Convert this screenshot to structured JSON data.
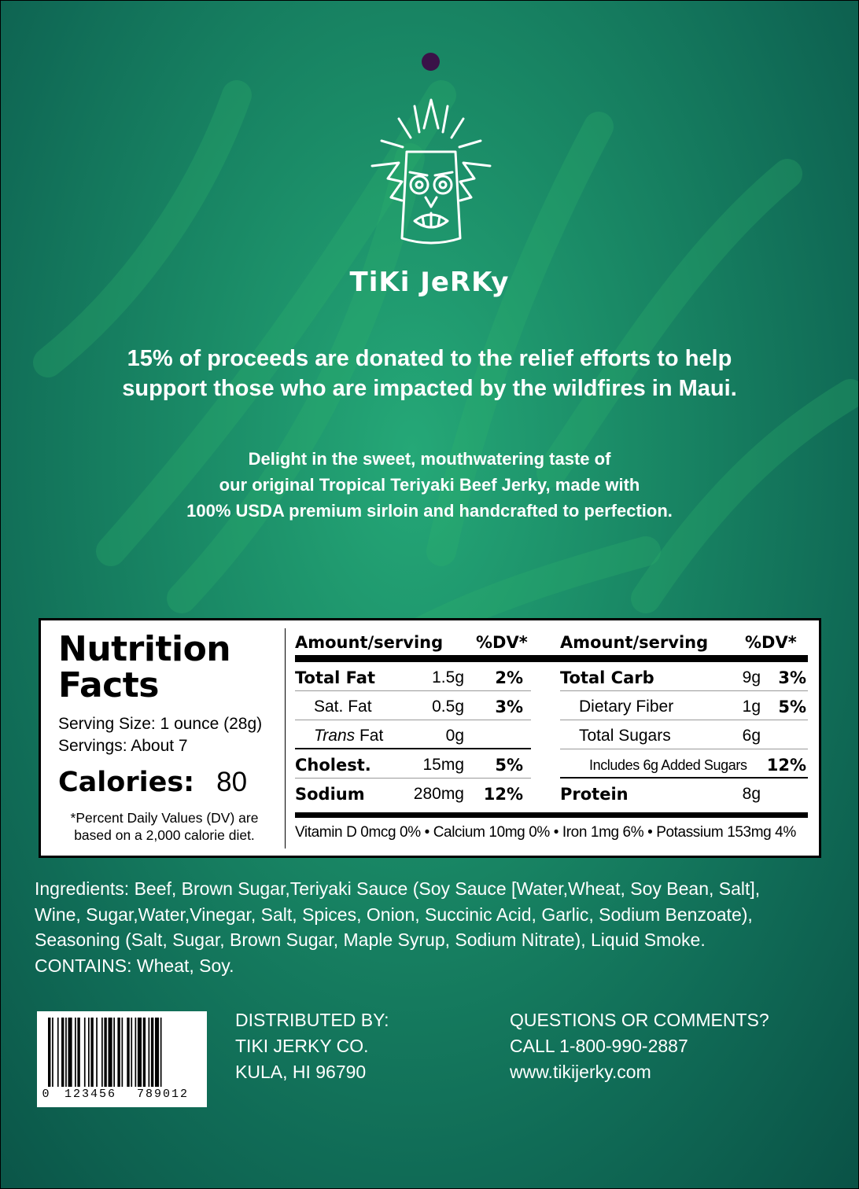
{
  "brand": {
    "name": "TiKi JeRKy"
  },
  "donation": {
    "line1": "15% of proceeds are donated to the relief efforts to help",
    "line2": "support those who are impacted by the wildfires in Maui."
  },
  "tagline": {
    "line1": "Delight in the sweet, mouthwatering taste of",
    "line2": "our original Tropical Teriyaki Beef Jerky, made with",
    "line3": "100% USDA premium sirloin and handcrafted to perfection."
  },
  "nutrition": {
    "title1": "Nutrition",
    "title2": "Facts",
    "serving_size": "Serving Size: 1 ounce (28g)",
    "servings": "Servings: About 7",
    "calories_label": "Calories:",
    "calories_value": "80",
    "footnote": "*Percent Daily Values (DV) are based on a 2,000 calorie diet.",
    "header_amount": "Amount/serving",
    "header_dv": "%DV*",
    "left_rows": [
      {
        "name": "Total Fat",
        "amount": "1.5g",
        "dv": "2%"
      },
      {
        "name": "Sat. Fat",
        "amount": "0.5g",
        "dv": "3%"
      },
      {
        "name_italic": "Trans",
        "name_rest": " Fat",
        "amount": "0g",
        "dv": ""
      },
      {
        "name": "Cholest.",
        "amount": "15mg",
        "dv": "5%"
      },
      {
        "name": "Sodium",
        "amount": "280mg",
        "dv": "12%"
      }
    ],
    "right_rows": [
      {
        "name": "Total Carb",
        "amount": "9g",
        "dv": "3%"
      },
      {
        "name": "Dietary Fiber",
        "amount": "1g",
        "dv": "5%"
      },
      {
        "name": "Total Sugars",
        "amount": "6g",
        "dv": ""
      },
      {
        "name": "Includes 6g Added Sugars",
        "amount": "",
        "dv": "12%"
      },
      {
        "name": "Protein",
        "amount": "8g",
        "dv": ""
      }
    ],
    "vitamins": "Vitamin D 0mcg 0% • Calcium 10mg 0% • Iron 1mg 6% • Potassium 153mg 4%"
  },
  "ingredients": {
    "line1": "Ingredients: Beef, Brown Sugar,Teriyaki Sauce (Soy Sauce [Water,Wheat, Soy Bean, Salt],",
    "line2": "Wine, Sugar,Water,Vinegar, Salt, Spices, Onion, Succinic Acid, Garlic, Sodium Benzoate),",
    "line3": "Seasoning (Salt, Sugar, Brown Sugar, Maple Syrup, Sodium Nitrate), Liquid Smoke.",
    "line4": "CONTAINS: Wheat, Soy."
  },
  "barcode": {
    "digits": [
      "0",
      "123456",
      "789012"
    ]
  },
  "distributor": {
    "line1": "DISTRIBUTED BY:",
    "line2": "TIKI JERKY CO.",
    "line3": "KULA, HI 96790"
  },
  "contact": {
    "line1": "QUESTIONS OR COMMENTS?",
    "line2": "CALL 1-800-990-2887",
    "line3": "www.tikijerky.com"
  },
  "colors": {
    "background": "#1a8a66",
    "text": "#ffffff",
    "hole": "#3a1248"
  }
}
